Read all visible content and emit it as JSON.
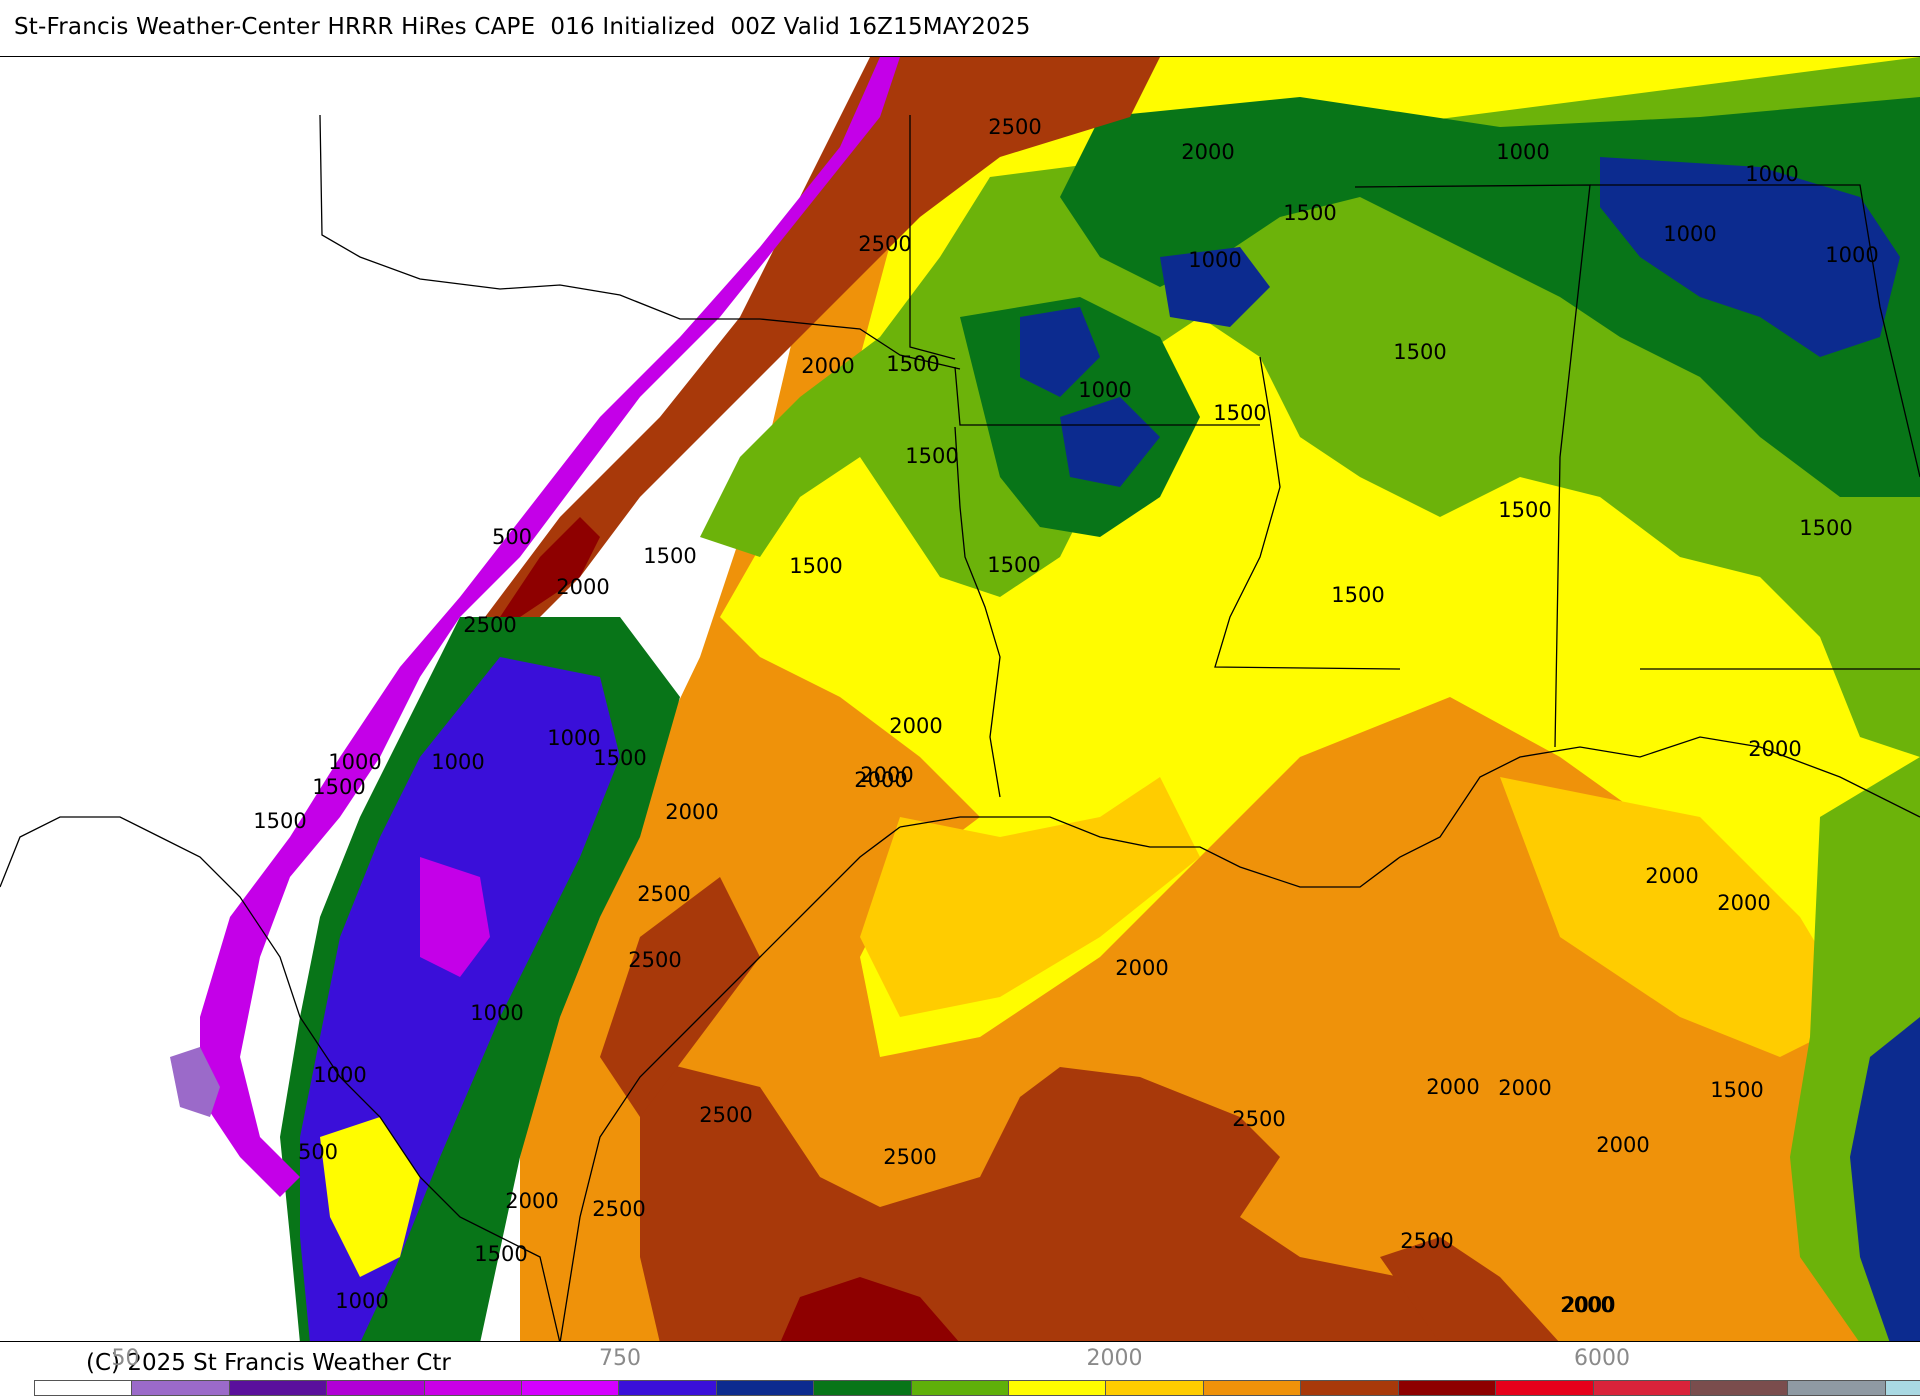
{
  "header": {
    "title": "St-Francis Weather-Center HRRR HiRes CAPE  016 Initialized  00Z Valid 16Z15MAY2025"
  },
  "footer": {
    "copyright": "(C) 2025 St Francis Weather Ctr",
    "colorbar_ticks": [
      {
        "text": "50",
        "cell": 1
      },
      {
        "text": "750",
        "cell": 6
      },
      {
        "text": "2000",
        "cell": 11
      },
      {
        "text": "6000",
        "cell": 16
      }
    ],
    "colorbar_colors": [
      "#ffffff",
      "#9b6ac9",
      "#5a0f9c",
      "#b100d6",
      "#c900e6",
      "#d400ff",
      "#3a0fd9",
      "#0c2b8f",
      "#087518",
      "#5fb00a",
      "#fffc00",
      "#ffcc00",
      "#f0920a",
      "#a8390a",
      "#8e0000",
      "#e6001a",
      "#d9233a",
      "#7a4d4d",
      "#8f9aa3",
      "#a9d9e3"
    ]
  },
  "map": {
    "field": "CAPE",
    "fill_colors": {
      "white": "#ffffff",
      "lavender": "#9b6ac9",
      "magenta": "#c400e8",
      "blue": "#3a0fd9",
      "navy": "#0c2b8f",
      "darkgreen": "#087518",
      "green": "#6cb30a",
      "yellow": "#fffc00",
      "gold": "#ffcc00",
      "orange": "#ef920a",
      "rust": "#a8390a",
      "darkred": "#8e0000"
    },
    "contour_labels": [
      "2500",
      "2000",
      "2500",
      "1000",
      "1500",
      "1000",
      "1000",
      "1000",
      "1000",
      "2000",
      "1500",
      "1000",
      "1500",
      "1500",
      "1500",
      "1500",
      "1500",
      "1500",
      "1500",
      "1500",
      "1500",
      "500",
      "2000",
      "2500",
      "1000",
      "1500",
      "1000",
      "1000",
      "1500",
      "1500",
      "2000",
      "2000",
      "2000",
      "2000",
      "2500",
      "2500",
      "1000",
      "1000",
      "500",
      "2000",
      "2500",
      "1500",
      "1000",
      "2500",
      "2000",
      "2000",
      "2000",
      "2000",
      "2000",
      "2000",
      "1500",
      "2000",
      "2000",
      "2000",
      "2500",
      "2500",
      "2500",
      "2000"
    ]
  }
}
